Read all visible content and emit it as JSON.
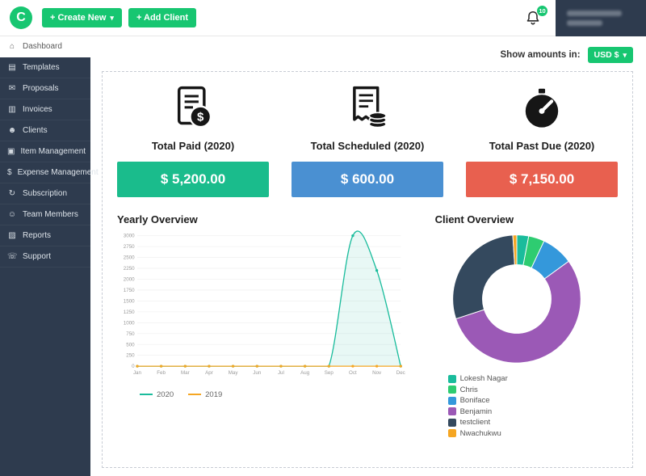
{
  "ui": {
    "caret_down": "▾"
  },
  "topbar": {
    "logo_letter": "C",
    "create_new_label": "+ Create New",
    "add_client_label": "+ Add Client",
    "notification_count": "10"
  },
  "sidebar": {
    "items": [
      {
        "label": "Dashboard",
        "icon_name": "dashboard-icon",
        "icon": "⌂",
        "active": true
      },
      {
        "label": "Templates",
        "icon_name": "templates-icon",
        "icon": "▤",
        "active": false
      },
      {
        "label": "Proposals",
        "icon_name": "proposals-icon",
        "icon": "✉",
        "active": false
      },
      {
        "label": "Invoices",
        "icon_name": "invoices-icon",
        "icon": "▥",
        "active": false
      },
      {
        "label": "Clients",
        "icon_name": "clients-icon",
        "icon": "☻",
        "active": false
      },
      {
        "label": "Item Management",
        "icon_name": "item-management-icon",
        "icon": "▣",
        "active": false
      },
      {
        "label": "Expense Management",
        "icon_name": "expense-management-icon",
        "icon": "$",
        "active": false
      },
      {
        "label": "Subscription",
        "icon_name": "subscription-icon",
        "icon": "↻",
        "active": false
      },
      {
        "label": "Team Members",
        "icon_name": "team-members-icon",
        "icon": "☺",
        "active": false
      },
      {
        "label": "Reports",
        "icon_name": "reports-icon",
        "icon": "▨",
        "active": false
      },
      {
        "label": "Support",
        "icon_name": "support-icon",
        "icon": "☏",
        "active": false
      }
    ]
  },
  "main": {
    "show_amounts_label": "Show amounts in:",
    "currency_selector": "USD $",
    "yearly_overview_title": "Yearly Overview",
    "client_overview_title": "Client Overview",
    "stats": [
      {
        "label": "Total Paid (2020)",
        "amount": "$ 5,200.00",
        "color": "#1abc8c",
        "icon": "invoice-dollar-icon"
      },
      {
        "label": "Total Scheduled (2020)",
        "amount": "$ 600.00",
        "color": "#4a90d2",
        "icon": "receipt-coins-icon"
      },
      {
        "label": "Total Past Due (2020)",
        "amount": "$ 7,150.00",
        "color": "#e8604f",
        "icon": "gauge-icon"
      }
    ]
  },
  "chart_data": [
    {
      "type": "area",
      "title": "Yearly Overview",
      "x": [
        "Jan",
        "Feb",
        "Mar",
        "Apr",
        "May",
        "Jun",
        "Jul",
        "Aug",
        "Sep",
        "Oct",
        "Nov",
        "Dec"
      ],
      "series": [
        {
          "name": "2020",
          "color": "#1abc9c",
          "values": [
            0,
            0,
            0,
            0,
            0,
            0,
            0,
            0,
            0,
            3000,
            2200,
            0
          ]
        },
        {
          "name": "2019",
          "color": "#f5a623",
          "values": [
            0,
            0,
            0,
            0,
            0,
            0,
            0,
            0,
            0,
            0,
            0,
            0
          ]
        }
      ],
      "ylim": [
        0,
        3000
      ],
      "ytick_step": 250,
      "grid": true,
      "legend_position": "bottom"
    },
    {
      "type": "pie",
      "donut": true,
      "title": "Client Overview",
      "labels": [
        "Lokesh Nagar",
        "Chris",
        "Boniface",
        "Benjamin",
        "testclient",
        "Nwachukwu"
      ],
      "values": [
        3,
        4,
        8,
        55,
        29,
        1
      ],
      "colors": [
        "#1abc9c",
        "#2ecc71",
        "#3498db",
        "#9b59b6",
        "#34495e",
        "#f5a623"
      ],
      "legend_position": "bottom-left"
    }
  ]
}
